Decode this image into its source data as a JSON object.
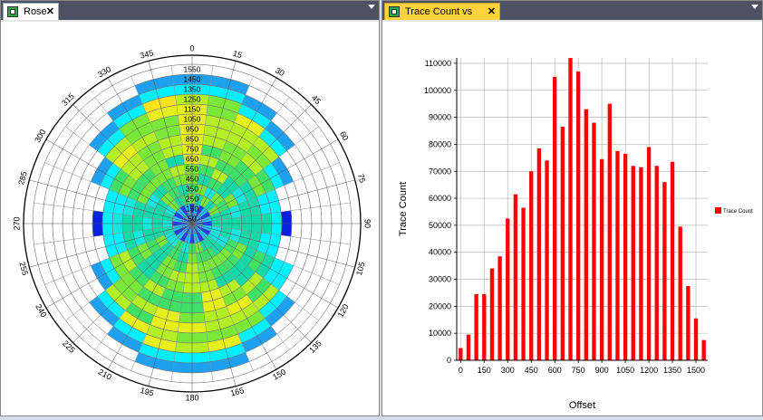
{
  "tabs": [
    {
      "label": "Rose",
      "close": "✕"
    },
    {
      "label": "Trace Count vs Offset",
      "close": "✕"
    }
  ],
  "rose": {
    "angle_labels": [
      "0",
      "15",
      "30",
      "45",
      "60",
      "75",
      "90",
      "105",
      "120",
      "135",
      "150",
      "165",
      "180",
      "195",
      "210",
      "225",
      "240",
      "255",
      "270",
      "285",
      "300",
      "315",
      "330",
      "345"
    ],
    "ring_labels": [
      "1550",
      "1450",
      "1350",
      "1250",
      "1150",
      "1050",
      "950",
      "850",
      "750",
      "650",
      "550",
      "450",
      "350",
      "250",
      "150",
      "50"
    ]
  },
  "chart_data": {
    "type": "bar",
    "title": "Trace Count vs Offset",
    "xlabel": "Offset",
    "ylabel": "Trace Count",
    "x": [
      0,
      50,
      100,
      150,
      200,
      250,
      300,
      350,
      400,
      450,
      500,
      550,
      600,
      650,
      700,
      750,
      800,
      850,
      900,
      950,
      1000,
      1050,
      1100,
      1150,
      1200,
      1250,
      1300,
      1350,
      1400,
      1450,
      1500,
      1550
    ],
    "values": [
      4500,
      9500,
      24500,
      24500,
      34000,
      38500,
      52500,
      61500,
      56500,
      70000,
      78500,
      74000,
      105000,
      86500,
      112000,
      107000,
      93000,
      88000,
      74500,
      95000,
      77500,
      76500,
      72000,
      71500,
      79000,
      72000,
      66000,
      73500,
      49500,
      27500,
      15500,
      7500
    ],
    "xlim": [
      -25,
      1575
    ],
    "ylim": [
      0,
      112000
    ],
    "xticks": [
      "0",
      "150",
      "300",
      "450",
      "600",
      "750",
      "900",
      "1050",
      "1200",
      "1350",
      "1500"
    ],
    "yticks": [
      "0",
      "10000",
      "20000",
      "30000",
      "40000",
      "50000",
      "60000",
      "70000",
      "80000",
      "90000",
      "100000",
      "110000"
    ],
    "legend": "Trace Count",
    "legend_position": "right",
    "bar_color": "#ff0000",
    "grid": true
  }
}
